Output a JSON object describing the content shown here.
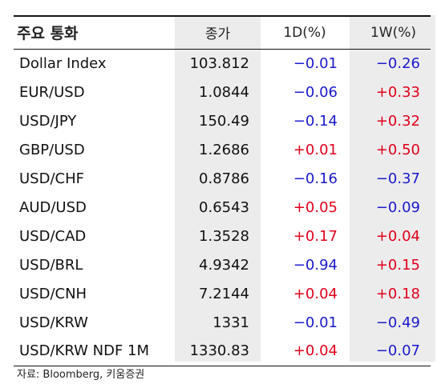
{
  "header": {
    "name": "주요 통화",
    "close": "종가",
    "change_1d": "1D(%)",
    "change_1w": "1W(%)"
  },
  "rows": [
    {
      "name": "Dollar Index",
      "close": "103.812",
      "d1": "−0.01",
      "w1": "−0.26"
    },
    {
      "name": "EUR/USD",
      "close": "1.0844",
      "d1": "−0.06",
      "w1": "+0.33"
    },
    {
      "name": "USD/JPY",
      "close": "150.49",
      "d1": "−0.14",
      "w1": "+0.32"
    },
    {
      "name": "GBP/USD",
      "close": "1.2686",
      "d1": "+0.01",
      "w1": "+0.50"
    },
    {
      "name": "USD/CHF",
      "close": "0.8786",
      "d1": "−0.16",
      "w1": "−0.37"
    },
    {
      "name": "AUD/USD",
      "close": "0.6543",
      "d1": "+0.05",
      "w1": "−0.09"
    },
    {
      "name": "USD/CAD",
      "close": "1.3528",
      "d1": "+0.17",
      "w1": "+0.04"
    },
    {
      "name": "USD/BRL",
      "close": "4.9342",
      "d1": "−0.94",
      "w1": "+0.15"
    },
    {
      "name": "USD/CNH",
      "close": "7.2144",
      "d1": "+0.04",
      "w1": "+0.18"
    },
    {
      "name": "USD/KRW",
      "close": "1331",
      "d1": "−0.01",
      "w1": "−0.49"
    },
    {
      "name": "USD/KRW NDF 1M",
      "close": "1330.83",
      "d1": "+0.04",
      "w1": "−0.07"
    }
  ],
  "colors": {
    "positive": "#e0001b",
    "negative": "#1a1acc",
    "shade": "#ececec"
  },
  "source": "자료: Bloomberg, 키움증권"
}
